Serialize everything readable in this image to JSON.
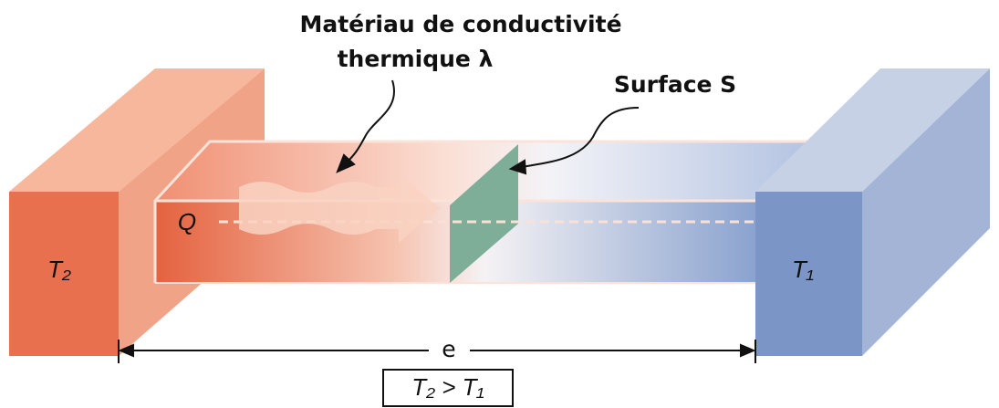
{
  "labels": {
    "material_line1": "Matériau de conductivité",
    "material_line2": "thermique λ",
    "surface": "Surface S",
    "heat": "Q",
    "hot_block": "T₂",
    "cold_block": "T₁",
    "length": "e",
    "condition": "T₂ > T₁"
  }
}
